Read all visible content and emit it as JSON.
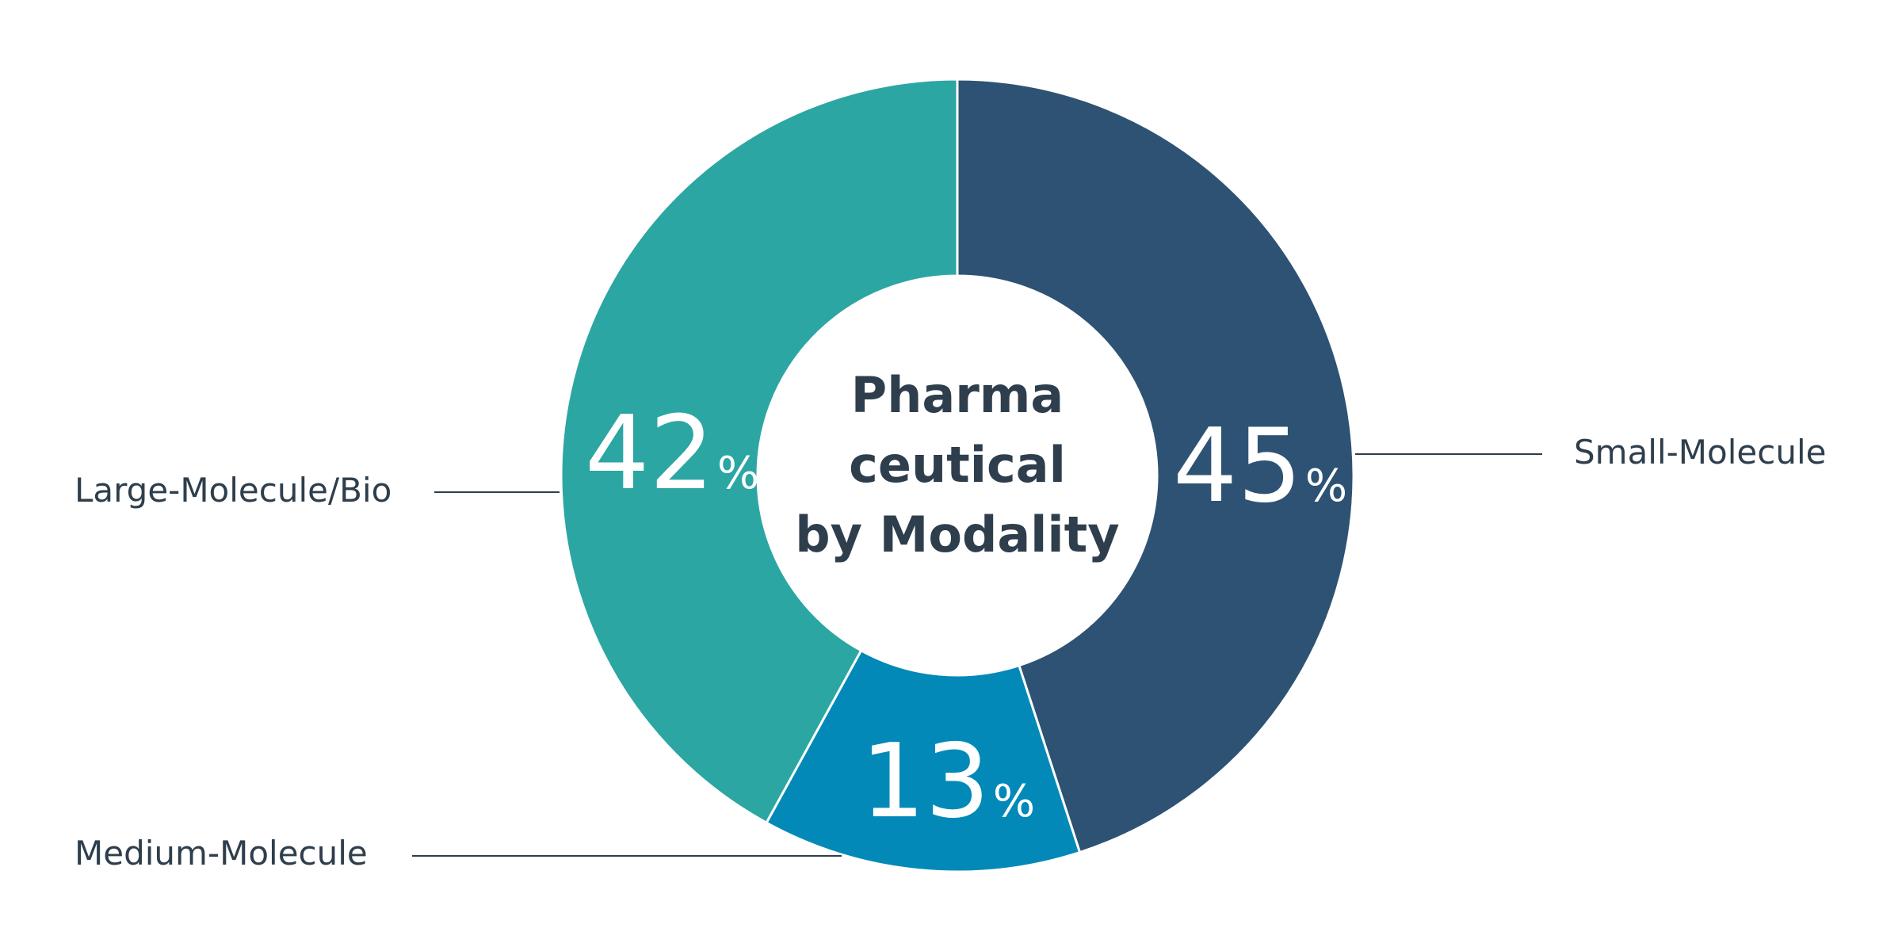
{
  "chart_data": {
    "type": "pie",
    "title_lines": [
      "Pharma",
      "ceutical",
      "by Modality"
    ],
    "unit": "%",
    "categories": [
      "Small-Molecule",
      "Medium-Molecule",
      "Large-Molecule/Bio"
    ],
    "values": [
      45,
      13,
      42
    ],
    "colors": [
      "#2e5273",
      "#0289b8",
      "#2ba6a3"
    ],
    "label_color": "#2e3e4c",
    "leader_color": "#2e3e4c"
  }
}
